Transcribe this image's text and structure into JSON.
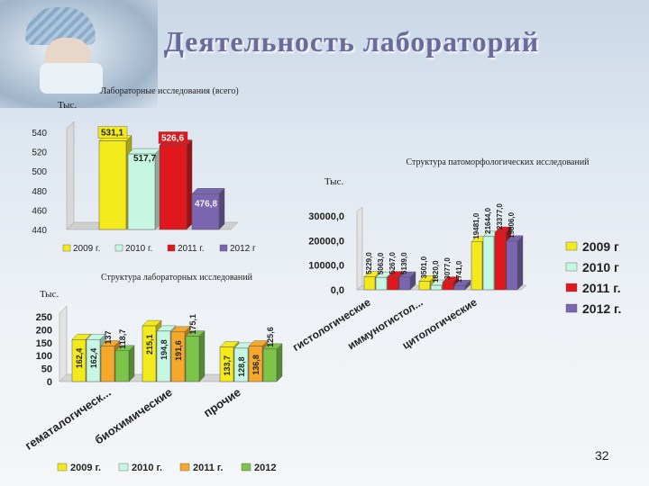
{
  "page": {
    "title": "Деятельность лабораторий",
    "slide_number": "32"
  },
  "chart_data": [
    {
      "type": "bar",
      "title": "Лабораторные исследования (всего)",
      "ylabel": "Тыс.",
      "categories": [
        "2009 г.",
        "2010 г.",
        "2011 г.",
        "2012 г"
      ],
      "values": [
        531.1,
        517.7,
        526.6,
        476.8
      ],
      "value_labels": [
        "531,1",
        "517,7",
        "526,6",
        "476,8"
      ],
      "colors": [
        "#f3ea1c",
        "#c6f7e3",
        "#e0181e",
        "#7a66b0"
      ],
      "ylim": [
        440,
        540
      ],
      "yticks": [
        "440",
        "460",
        "480",
        "500",
        "520",
        "540"
      ],
      "legend": "bottom"
    },
    {
      "type": "bar",
      "title": "Структура патоморфологических исследований",
      "ylabel": "Тыс.",
      "categories": [
        "гистологические",
        "иммуногистол...",
        "цитологические"
      ],
      "series": [
        {
          "name": "2009 г",
          "values": [
            5229.0,
            3501.0,
            19481.0
          ],
          "labels": [
            "5229,0",
            "3501,0",
            "19481,0"
          ],
          "color": "#f3ea1c"
        },
        {
          "name": "2010 г",
          "values": [
            5063.0,
            1820.0,
            21644.0
          ],
          "labels": [
            "5063,0",
            "1820,0",
            "21644,0"
          ],
          "color": "#c6f7e3"
        },
        {
          "name": "2011 г.",
          "values": [
            5267.0,
            3077.0,
            23377.0
          ],
          "labels": [
            "5267,0",
            "3077,0",
            "23377,0"
          ],
          "color": "#e0181e"
        },
        {
          "name": "2012 г.",
          "values": [
            5139.0,
            1741.0,
            19806.0
          ],
          "labels": [
            "5139,0",
            "1741,0",
            "19806,0"
          ],
          "color": "#7a66b0"
        }
      ],
      "ylim": [
        0,
        30000
      ],
      "yticks": [
        "0,0",
        "10000,0",
        "20000,0",
        "30000,0"
      ],
      "legend": "right"
    },
    {
      "type": "bar",
      "title": "Структура лабораторных исследований",
      "ylabel": "Тыс.",
      "categories": [
        "гематалогическ...",
        "биохимические",
        "прочие"
      ],
      "series": [
        {
          "name": "2009 г.",
          "values": [
            162.4,
            215.1,
            133.7
          ],
          "labels": [
            "162,4",
            "215,1",
            "133,7"
          ],
          "color": "#f3ea1c"
        },
        {
          "name": "2010 г.",
          "values": [
            162.4,
            194.8,
            128.8
          ],
          "labels": [
            "162,4",
            "194,8",
            "128,8"
          ],
          "color": "#c6f7e3"
        },
        {
          "name": "2011 г.",
          "values": [
            137,
            191.6,
            136.8
          ],
          "labels": [
            "137",
            "191,6",
            "136,8"
          ],
          "color": "#f5a82a"
        },
        {
          "name": "2012",
          "values": [
            118.7,
            175.1,
            125.6
          ],
          "labels": [
            "118,7",
            "175,1",
            "125,6"
          ],
          "color": "#7cc44a"
        }
      ],
      "ylim": [
        0,
        250
      ],
      "yticks": [
        "0",
        "50",
        "100",
        "150",
        "200",
        "250"
      ],
      "legend": "bottom"
    }
  ]
}
